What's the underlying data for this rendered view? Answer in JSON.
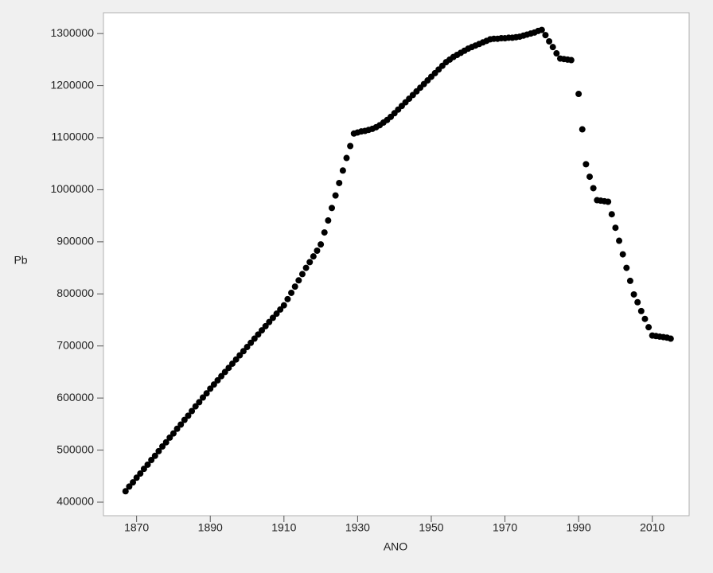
{
  "chart_data": {
    "type": "scatter",
    "x_label": "ANO",
    "y_label": "Pb",
    "color": "#000000",
    "x": [
      1867,
      1868,
      1869,
      1870,
      1871,
      1872,
      1873,
      1874,
      1875,
      1876,
      1877,
      1878,
      1879,
      1880,
      1881,
      1882,
      1883,
      1884,
      1885,
      1886,
      1887,
      1888,
      1889,
      1890,
      1891,
      1892,
      1893,
      1894,
      1895,
      1896,
      1897,
      1898,
      1899,
      1900,
      1901,
      1902,
      1903,
      1904,
      1905,
      1906,
      1907,
      1908,
      1909,
      1910,
      1911,
      1912,
      1913,
      1914,
      1915,
      1916,
      1917,
      1918,
      1919,
      1920,
      1921,
      1922,
      1923,
      1924,
      1925,
      1926,
      1927,
      1928,
      1929,
      1930,
      1931,
      1932,
      1933,
      1934,
      1935,
      1936,
      1937,
      1938,
      1939,
      1940,
      1941,
      1942,
      1943,
      1944,
      1945,
      1946,
      1947,
      1948,
      1949,
      1950,
      1951,
      1952,
      1953,
      1954,
      1955,
      1956,
      1957,
      1958,
      1959,
      1960,
      1961,
      1962,
      1963,
      1964,
      1965,
      1966,
      1967,
      1968,
      1969,
      1970,
      1971,
      1972,
      1973,
      1974,
      1975,
      1976,
      1977,
      1978,
      1979,
      1980,
      1981,
      1982,
      1983,
      1984,
      1985,
      1986,
      1987,
      1988,
      1990,
      1991,
      1992,
      1993,
      1994,
      1995,
      1996,
      1997,
      1998,
      1999,
      2000,
      2001,
      2002,
      2003,
      2004,
      2005,
      2006,
      2007,
      2008,
      2009,
      2010,
      2011,
      2012,
      2013,
      2014,
      2015
    ],
    "values": [
      421000,
      430000,
      438000,
      447000,
      455000,
      464000,
      472000,
      481000,
      489000,
      498000,
      507000,
      515000,
      524000,
      532000,
      541000,
      549000,
      558000,
      566000,
      575000,
      584000,
      592000,
      601000,
      609000,
      618000,
      626000,
      634000,
      642000,
      650000,
      658000,
      666000,
      674000,
      682000,
      690000,
      698000,
      706000,
      714000,
      722000,
      730000,
      738000,
      746000,
      754000,
      762000,
      770000,
      778000,
      790000,
      802000,
      814000,
      826000,
      838000,
      850000,
      861000,
      872000,
      883000,
      895000,
      918000,
      941000,
      965000,
      989000,
      1013000,
      1037000,
      1061000,
      1084000,
      1108000,
      1110000,
      1112000,
      1113000,
      1115000,
      1117000,
      1120000,
      1124000,
      1129000,
      1134000,
      1140000,
      1147000,
      1154000,
      1161000,
      1168000,
      1175000,
      1182000,
      1189000,
      1196000,
      1203000,
      1210000,
      1217000,
      1224000,
      1231000,
      1238000,
      1245000,
      1250000,
      1255000,
      1259000,
      1263000,
      1267000,
      1271000,
      1274000,
      1277000,
      1280000,
      1283000,
      1286000,
      1289000,
      1290000,
      1290000,
      1291000,
      1291000,
      1292000,
      1292000,
      1293000,
      1294000,
      1296000,
      1298000,
      1300000,
      1302000,
      1305000,
      1307000,
      1297000,
      1285000,
      1274000,
      1262000,
      1252000,
      1251000,
      1250000,
      1249000,
      1184000,
      1116000,
      1049000,
      1025000,
      1003000,
      980000,
      979000,
      978000,
      977000,
      953000,
      927000,
      902000,
      876000,
      850000,
      825000,
      799000,
      784000,
      767000,
      752000,
      736000,
      720000,
      719000,
      718000,
      717000,
      716000,
      714000
    ],
    "xlim": [
      1861,
      2020
    ],
    "xticks": [
      1870,
      1890,
      1910,
      1930,
      1950,
      1970,
      1990,
      2010
    ],
    "ylim": [
      374000,
      1340000
    ],
    "yticks": [
      400000,
      500000,
      600000,
      700000,
      800000,
      900000,
      1000000,
      1100000,
      1200000,
      1300000
    ]
  }
}
